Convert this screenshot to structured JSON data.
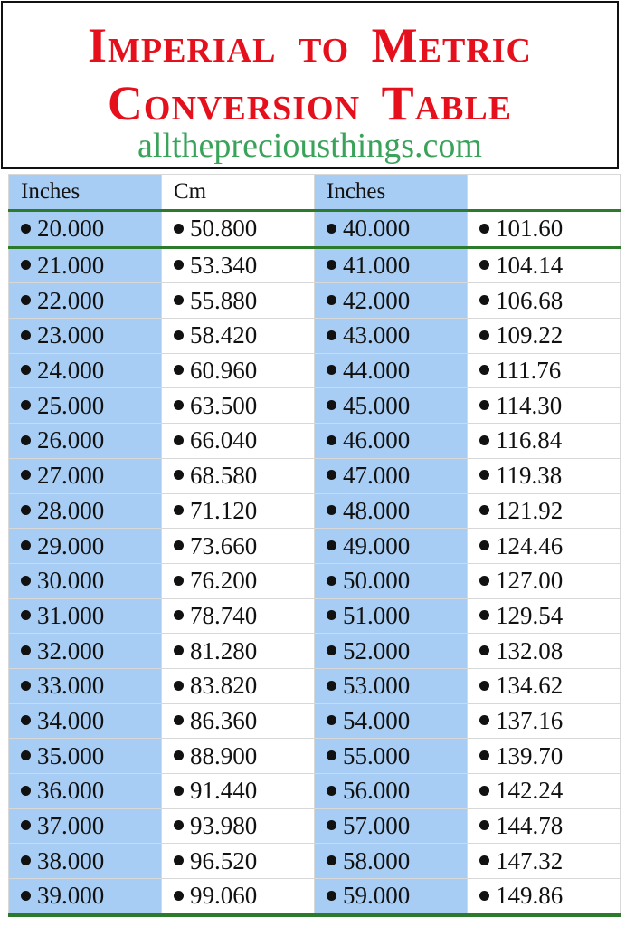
{
  "header": {
    "title_line1": "Imperial to Metric",
    "title_line2": "Conversion Table",
    "website": "allthepreciousthings.com"
  },
  "colors": {
    "title": "#e5101c",
    "website": "#3aa35a",
    "inches_column": "#a8cdf4",
    "rule": "#2c7a2c"
  },
  "table": {
    "columns": [
      "Inches",
      "Cm",
      "Inches",
      ""
    ],
    "rows": [
      [
        "20.000",
        "50.800",
        "40.000",
        "101.60"
      ],
      [
        "21.000",
        "53.340",
        "41.000",
        "104.14"
      ],
      [
        "22.000",
        "55.880",
        "42.000",
        "106.68"
      ],
      [
        "23.000",
        "58.420",
        "43.000",
        "109.22"
      ],
      [
        "24.000",
        "60.960",
        "44.000",
        "111.76"
      ],
      [
        "25.000",
        "63.500",
        "45.000",
        "114.30"
      ],
      [
        "26.000",
        "66.040",
        "46.000",
        "116.84"
      ],
      [
        "27.000",
        "68.580",
        "47.000",
        "119.38"
      ],
      [
        "28.000",
        "71.120",
        "48.000",
        "121.92"
      ],
      [
        "29.000",
        "73.660",
        "49.000",
        "124.46"
      ],
      [
        "30.000",
        "76.200",
        "50.000",
        "127.00"
      ],
      [
        "31.000",
        "78.740",
        "51.000",
        "129.54"
      ],
      [
        "32.000",
        "81.280",
        "52.000",
        "132.08"
      ],
      [
        "33.000",
        "83.820",
        "53.000",
        "134.62"
      ],
      [
        "34.000",
        "86.360",
        "54.000",
        "137.16"
      ],
      [
        "35.000",
        "88.900",
        "55.000",
        "139.70"
      ],
      [
        "36.000",
        "91.440",
        "56.000",
        "142.24"
      ],
      [
        "37.000",
        "93.980",
        "57.000",
        "144.78"
      ],
      [
        "38.000",
        "96.520",
        "58.000",
        "147.32"
      ],
      [
        "39.000",
        "99.060",
        "59.000",
        "149.86"
      ]
    ]
  }
}
